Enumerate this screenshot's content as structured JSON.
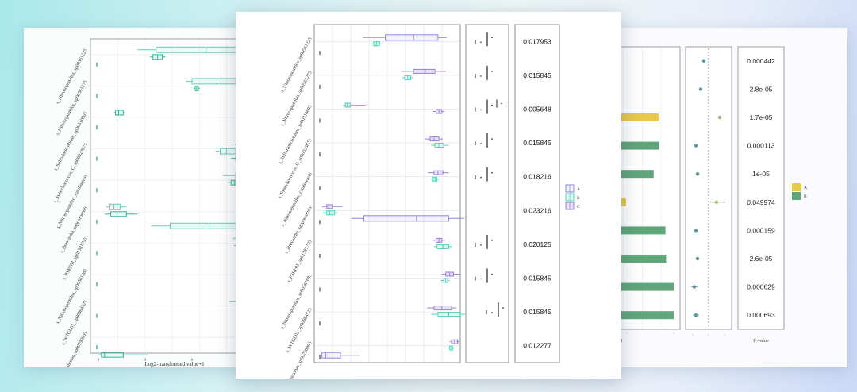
{
  "colors": {
    "A": "#8b86e6",
    "B": "#52d3bc",
    "C": "#9b7fd9",
    "left_B": "#3fae97",
    "bar_A": "#e9c84d",
    "bar_B": "#5fa67b",
    "grid": "#e4e6ea",
    "frame": "#8a8f96"
  },
  "chart_data": [
    {
      "type": "box",
      "panel": "left-background",
      "categories": [
        "s_Nitrosopumilus_sp00561225",
        "s_Nitrosopumilus_sp00561275",
        "s_Sulfurimicrobium_sp00310805",
        "s_Synechococcus_C_sp00023675",
        "s_Nitrosopumilus_catalinensis",
        "s_Brevundia_sapporoensis",
        "s_PSRF01_sp01381795",
        "s_Nitrosopumilus_sp00561685",
        "s_WTGL01_sp00984525",
        "s_Kordiimonas_sp00790805"
      ],
      "xlabel": "Log2-transformed value+1",
      "boxes": [
        {
          "category": 0,
          "group": "A",
          "q1": 3.7,
          "median": 6.9,
          "q3": 9.6,
          "lo": 2.5,
          "hi": 10.6
        },
        {
          "category": 0,
          "group": "B",
          "q1": 3.5,
          "median": 3.8,
          "q3": 4.1,
          "lo": 3.3,
          "hi": 4.3
        },
        {
          "category": 1,
          "group": "A",
          "q1": 6.0,
          "median": 7.6,
          "q3": 8.8,
          "lo": 5.6,
          "hi": 9.7
        },
        {
          "category": 1,
          "group": "B",
          "q1": 6.2,
          "median": 6.3,
          "q3": 6.4,
          "lo": 6.1,
          "hi": 6.5
        },
        {
          "category": 2,
          "group": "B",
          "q1": 1.1,
          "median": 1.3,
          "q3": 1.6,
          "lo": 1.0,
          "hi": 1.7
        },
        {
          "category": 3,
          "group": "A",
          "q1": 8.9,
          "median": 9.1,
          "q3": 9.4,
          "lo": 8.5,
          "hi": 9.7
        },
        {
          "category": 3,
          "group": "A",
          "q1": 7.8,
          "median": 8.2,
          "q3": 8.8,
          "lo": 7.5,
          "hi": 9.2
        },
        {
          "category": 3,
          "group": "B",
          "q1": 8.8,
          "median": 9.1,
          "q3": 9.5,
          "lo": 8.5,
          "hi": 9.8
        },
        {
          "category": 4,
          "group": "A",
          "q1": 8.8,
          "median": 9.3,
          "q3": 9.9,
          "lo": 8.0,
          "hi": 10.5
        },
        {
          "category": 4,
          "group": "B",
          "q1": 8.5,
          "median": 8.7,
          "q3": 8.8,
          "lo": 8.3,
          "hi": 9.0
        },
        {
          "category": 5,
          "group": "A",
          "q1": 0.7,
          "median": 1.0,
          "q3": 1.4,
          "lo": 0.5,
          "hi": 1.8
        },
        {
          "category": 5,
          "group": "B",
          "q1": 0.8,
          "median": 1.2,
          "q3": 1.8,
          "lo": 0.4,
          "hi": 2.5
        },
        {
          "category": 5,
          "group": "A",
          "q1": 4.6,
          "median": 7.1,
          "q3": 10.1,
          "lo": 3.4,
          "hi": 11.5
        },
        {
          "category": 6,
          "group": "A",
          "q1": 8.9,
          "median": 9.2,
          "q3": 9.6,
          "lo": 8.6,
          "hi": 9.9
        },
        {
          "category": 6,
          "group": "B",
          "q1": 9.0,
          "median": 9.6,
          "q3": 10.3,
          "lo": 8.7,
          "hi": 10.6
        },
        {
          "category": 7,
          "group": "A",
          "q1": 9.9,
          "median": 10.3,
          "q3": 10.8,
          "lo": 9.4,
          "hi": 11.4
        },
        {
          "category": 7,
          "group": "B",
          "q1": 9.8,
          "median": 10.0,
          "q3": 10.1,
          "lo": 9.6,
          "hi": 10.3
        },
        {
          "category": 8,
          "group": "A",
          "q1": 8.9,
          "median": 9.7,
          "q3": 10.8,
          "lo": 8.4,
          "hi": 11.6
        },
        {
          "category": 8,
          "group": "B",
          "q1": 9.6,
          "median": 10.2,
          "q3": 11.0,
          "lo": 9.1,
          "hi": 11.7
        },
        {
          "category": 9,
          "group": "A",
          "q1": 10.8,
          "median": 11.1,
          "q3": 11.4,
          "lo": 10.5,
          "hi": 11.7
        },
        {
          "category": 9,
          "group": "B",
          "q1": 10.5,
          "median": 10.7,
          "q3": 10.8,
          "lo": 10.3,
          "hi": 11.0
        },
        {
          "category": 9,
          "group": "B",
          "q1": 0.2,
          "median": 0.4,
          "q3": 1.6,
          "lo": 0.0,
          "hi": 3.2
        }
      ],
      "xlim": [
        -0.5,
        12.5
      ],
      "x_ticks": [
        "0",
        "3",
        "6",
        "9"
      ]
    },
    {
      "type": "box",
      "panel": "main",
      "categories": [
        "s_Nitrosopumilus_sp00561225",
        "s_Nitrosopumilus_sp00561275",
        "s_Sulfurimicrobium_sp00310805",
        "s_Synechococcus_C_sp00023675",
        "s_Nitrosopumilus_catalinensis",
        "s_Brevundia_sapporoensis",
        "s_PSRF01_sp01381795",
        "s_Nitrosopumilus_sp00561685",
        "s_WTGL01_sp00984525",
        "s_Kordiimonas_sp00790805"
      ],
      "legend": [
        "A",
        "B",
        "C"
      ],
      "legend_position": "right",
      "xlim": [
        0,
        14
      ],
      "boxes": [
        {
          "category": 0,
          "group": "A",
          "q1": 6.8,
          "median": 9.7,
          "q3": 12.2,
          "lo": 4.5,
          "hi": 13.1
        },
        {
          "category": 0,
          "group": "B",
          "q1": 5.6,
          "median": 5.9,
          "q3": 6.2,
          "lo": 5.3,
          "hi": 6.6
        },
        {
          "category": 1,
          "group": "C",
          "q1": 9.7,
          "median": 10.9,
          "q3": 11.9,
          "lo": 8.4,
          "hi": 13.0
        },
        {
          "category": 1,
          "group": "B",
          "q1": 8.8,
          "median": 9.1,
          "q3": 9.4,
          "lo": 8.5,
          "hi": 9.6
        },
        {
          "category": 2,
          "group": "B",
          "q1": 2.7,
          "median": 2.9,
          "q3": 3.2,
          "lo": 2.5,
          "hi": 4.8
        },
        {
          "category": 2,
          "group": "C",
          "q1": 12.0,
          "median": 12.3,
          "q3": 12.6,
          "lo": 11.7,
          "hi": 12.9
        },
        {
          "category": 3,
          "group": "C",
          "q1": 11.4,
          "median": 11.8,
          "q3": 12.3,
          "lo": 10.9,
          "hi": 12.7
        },
        {
          "category": 3,
          "group": "B",
          "q1": 11.9,
          "median": 12.3,
          "q3": 12.8,
          "lo": 11.5,
          "hi": 13.3
        },
        {
          "category": 4,
          "group": "C",
          "q1": 11.8,
          "median": 12.2,
          "q3": 12.7,
          "lo": 11.2,
          "hi": 13.3
        },
        {
          "category": 4,
          "group": "B",
          "q1": 11.7,
          "median": 11.9,
          "q3": 12.1,
          "lo": 11.5,
          "hi": 12.3
        },
        {
          "category": 5,
          "group": "C",
          "q1": 0.8,
          "median": 1.0,
          "q3": 1.4,
          "lo": 0.3,
          "hi": 2.4
        },
        {
          "category": 5,
          "group": "B",
          "q1": 0.8,
          "median": 1.1,
          "q3": 1.6,
          "lo": 0.4,
          "hi": 2.0
        },
        {
          "category": 5,
          "group": "A",
          "q1": 4.6,
          "median": 10.0,
          "q3": 13.3,
          "lo": 3.3,
          "hi": 14.9
        },
        {
          "category": 6,
          "group": "C",
          "q1": 12.0,
          "median": 12.3,
          "q3": 12.6,
          "lo": 11.7,
          "hi": 12.9
        },
        {
          "category": 6,
          "group": "B",
          "q1": 12.1,
          "median": 12.7,
          "q3": 13.3,
          "lo": 11.8,
          "hi": 13.6
        },
        {
          "category": 7,
          "group": "C",
          "q1": 13.0,
          "median": 13.4,
          "q3": 13.8,
          "lo": 12.6,
          "hi": 14.5
        },
        {
          "category": 7,
          "group": "B",
          "q1": 12.8,
          "median": 13.0,
          "q3": 13.2,
          "lo": 12.5,
          "hi": 13.4
        },
        {
          "category": 8,
          "group": "C",
          "q1": 11.8,
          "median": 12.6,
          "q3": 13.6,
          "lo": 11.1,
          "hi": 14.1
        },
        {
          "category": 8,
          "group": "B",
          "q1": 12.2,
          "median": 13.3,
          "q3": 14.5,
          "lo": 11.5,
          "hi": 15.0
        },
        {
          "category": 9,
          "group": "C",
          "q1": 13.6,
          "median": 13.9,
          "q3": 14.2,
          "lo": 13.4,
          "hi": 14.4
        },
        {
          "category": 9,
          "group": "B",
          "q1": 13.4,
          "median": 13.6,
          "q3": 13.7,
          "lo": 13.2,
          "hi": 13.9
        },
        {
          "category": 9,
          "group": "A",
          "q1": 0.3,
          "median": 0.7,
          "q3": 2.2,
          "lo": 0.0,
          "hi": 4.2
        }
      ],
      "p_values": [
        "0.017953",
        "0.015845",
        "0.005648",
        "0.015845",
        "0.018216",
        "0.023216",
        "0.020125",
        "0.015845",
        "0.015845",
        "0.012277"
      ]
    },
    {
      "type": "bar",
      "panel": "right-background",
      "xlabel": "alue+1",
      "bars": [
        {
          "row": 2,
          "group": "A",
          "value": 0.78
        },
        {
          "row": 3,
          "group": "B",
          "value": 0.79
        },
        {
          "row": 4,
          "group": "B",
          "value": 0.71
        },
        {
          "row": 5,
          "group": "A",
          "value": 0.31
        },
        {
          "row": 6,
          "group": "B",
          "value": 0.88
        },
        {
          "row": 7,
          "group": "B",
          "value": 0.89
        },
        {
          "row": 8,
          "group": "B",
          "value": 1.0
        },
        {
          "row": 9,
          "group": "B",
          "value": 1.0
        }
      ],
      "dots": [
        {
          "row": 0,
          "value": -0.3
        },
        {
          "row": 1,
          "value": -0.5
        },
        {
          "row": 2,
          "value": 0.7,
          "ci": [
            0.6,
            0.8
          ]
        },
        {
          "row": 3,
          "value": -0.8
        },
        {
          "row": 4,
          "value": -0.7
        },
        {
          "row": 5,
          "value": 0.5,
          "ci": [
            0.1,
            1.1
          ]
        },
        {
          "row": 6,
          "value": -0.8
        },
        {
          "row": 7,
          "value": -0.7
        },
        {
          "row": 8,
          "value": -0.9,
          "ci": [
            -1.1,
            -0.7
          ]
        },
        {
          "row": 9,
          "value": -0.8,
          "ci": [
            -1.0,
            -0.6
          ]
        }
      ],
      "p_values": [
        "0.000442",
        "2.8e-05",
        "1.7e-05",
        "0.000113",
        "1e-05",
        "0.049974",
        "0.000159",
        "2.6e-05",
        "0.000629",
        "0.000693"
      ],
      "p_label": "P-value",
      "legend": [
        "A",
        "B"
      ]
    }
  ]
}
